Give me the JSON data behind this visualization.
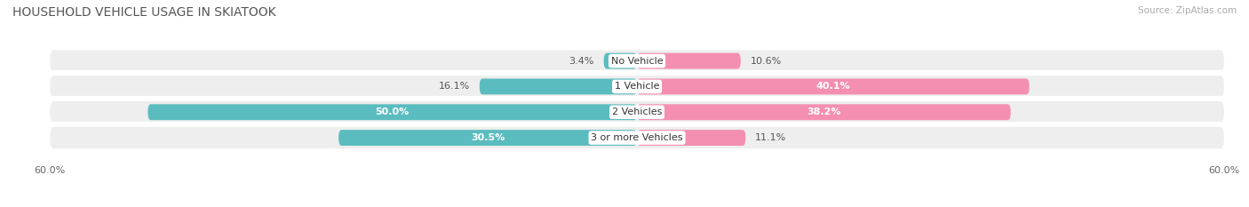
{
  "title": "HOUSEHOLD VEHICLE USAGE IN SKIATOOK",
  "source": "Source: ZipAtlas.com",
  "categories": [
    "No Vehicle",
    "1 Vehicle",
    "2 Vehicles",
    "3 or more Vehicles"
  ],
  "owner_values": [
    3.4,
    16.1,
    50.0,
    30.5
  ],
  "renter_values": [
    10.6,
    40.1,
    38.2,
    11.1
  ],
  "owner_color": "#5bbcbf",
  "renter_color": "#f48fb1",
  "xlim": [
    -60,
    60
  ],
  "background_color": "#ffffff",
  "row_bg_color": "#eeeeee",
  "title_fontsize": 10,
  "source_fontsize": 7.5,
  "value_fontsize": 8,
  "category_fontsize": 8
}
